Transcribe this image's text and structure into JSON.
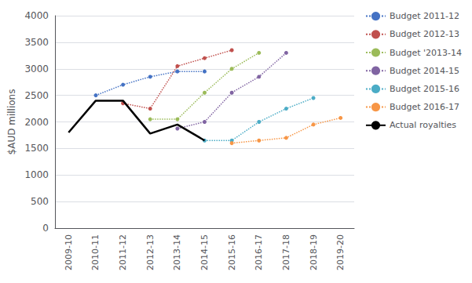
{
  "chart_data": {
    "type": "line",
    "categories": [
      "2009-10",
      "2010-11",
      "2011-12",
      "2012-13",
      "2013-14",
      "2014-15",
      "2015-16",
      "2016-17",
      "2017-18",
      "2018-19",
      "2019-20"
    ],
    "ylabel": "$AUD millions",
    "ylim": [
      0,
      4000
    ],
    "yticks": [
      0,
      500,
      1000,
      1500,
      2000,
      2500,
      3000,
      3500,
      4000
    ],
    "grid": true,
    "legend": "right",
    "series": [
      {
        "name": "Budget 2011-12",
        "color": "#4472c4",
        "line_style": "dotted",
        "marker": "circle",
        "values": [
          null,
          2500,
          2700,
          2850,
          2950,
          2950,
          null,
          null,
          null,
          null,
          null
        ]
      },
      {
        "name": "Budget 2012-13",
        "color": "#c0504d",
        "line_style": "dotted",
        "marker": "circle",
        "values": [
          null,
          null,
          2350,
          2250,
          3050,
          3200,
          3350,
          null,
          null,
          null,
          null
        ]
      },
      {
        "name": "Budget '2013-14",
        "color": "#9bbb59",
        "line_style": "dotted",
        "marker": "circle",
        "values": [
          null,
          null,
          null,
          2050,
          2050,
          2550,
          3000,
          3300,
          null,
          null,
          null
        ]
      },
      {
        "name": "Budget 2014-15",
        "color": "#8064a2",
        "line_style": "dotted",
        "marker": "circle",
        "values": [
          null,
          null,
          null,
          null,
          1875,
          2000,
          2550,
          2850,
          3300,
          null,
          null
        ]
      },
      {
        "name": "Budget 2015-16",
        "color": "#4bacc6",
        "line_style": "dotted",
        "marker": "circle",
        "values": [
          null,
          null,
          null,
          null,
          null,
          1650,
          1650,
          2000,
          2250,
          2450,
          null
        ]
      },
      {
        "name": "Budget 2016-17",
        "color": "#f79646",
        "line_style": "dotted",
        "marker": "circle",
        "values": [
          null,
          null,
          null,
          null,
          null,
          null,
          1600,
          1650,
          1700,
          1950,
          2075
        ]
      },
      {
        "name": "Actual royalties",
        "color": "#000000",
        "line_style": "solid",
        "marker": "none",
        "values": [
          1800,
          2400,
          2400,
          1780,
          1950,
          1650,
          null,
          null,
          null,
          null,
          null
        ]
      }
    ]
  }
}
